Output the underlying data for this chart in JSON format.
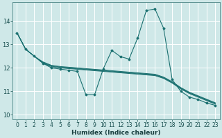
{
  "xlabel": "Humidex (Indice chaleur)",
  "bg_color": "#cfe8e8",
  "grid_color": "#b0d0d0",
  "line_color": "#1a7070",
  "xlim": [
    -0.5,
    23.5
  ],
  "ylim": [
    9.8,
    14.8
  ],
  "xticks": [
    0,
    1,
    2,
    3,
    4,
    5,
    6,
    7,
    8,
    9,
    10,
    11,
    12,
    13,
    14,
    15,
    16,
    17,
    18,
    19,
    20,
    21,
    22,
    23
  ],
  "yticks": [
    10,
    11,
    12,
    13,
    14
  ],
  "tick_fontsize": 5.5,
  "xlabel_fontsize": 6.5,
  "jagged_line": [
    13.5,
    12.8,
    12.5,
    12.2,
    12.0,
    11.95,
    11.9,
    11.85,
    10.85,
    10.85,
    11.95,
    12.75,
    12.48,
    12.38,
    13.28,
    14.45,
    14.52,
    13.7,
    11.5,
    11.0,
    10.75,
    10.65,
    10.5,
    10.4
  ],
  "trend_lines": [
    [
      13.5,
      12.8,
      12.5,
      12.2,
      12.05,
      12.0,
      11.97,
      11.94,
      11.91,
      11.88,
      11.85,
      11.82,
      11.79,
      11.76,
      11.73,
      11.7,
      11.67,
      11.55,
      11.35,
      11.1,
      10.9,
      10.75,
      10.6,
      10.45
    ],
    [
      13.5,
      12.8,
      12.5,
      12.22,
      12.07,
      12.02,
      11.99,
      11.96,
      11.93,
      11.9,
      11.87,
      11.84,
      11.81,
      11.78,
      11.75,
      11.72,
      11.69,
      11.57,
      11.37,
      11.12,
      10.92,
      10.77,
      10.62,
      10.47
    ],
    [
      13.5,
      12.8,
      12.5,
      12.24,
      12.09,
      12.04,
      12.01,
      11.98,
      11.95,
      11.92,
      11.89,
      11.86,
      11.83,
      11.8,
      11.77,
      11.74,
      11.71,
      11.59,
      11.39,
      11.14,
      10.94,
      10.79,
      10.64,
      10.49
    ],
    [
      13.5,
      12.8,
      12.5,
      12.26,
      12.11,
      12.06,
      12.03,
      12.0,
      11.97,
      11.94,
      11.91,
      11.88,
      11.85,
      11.82,
      11.79,
      11.76,
      11.73,
      11.61,
      11.41,
      11.16,
      10.96,
      10.81,
      10.66,
      10.51
    ]
  ]
}
